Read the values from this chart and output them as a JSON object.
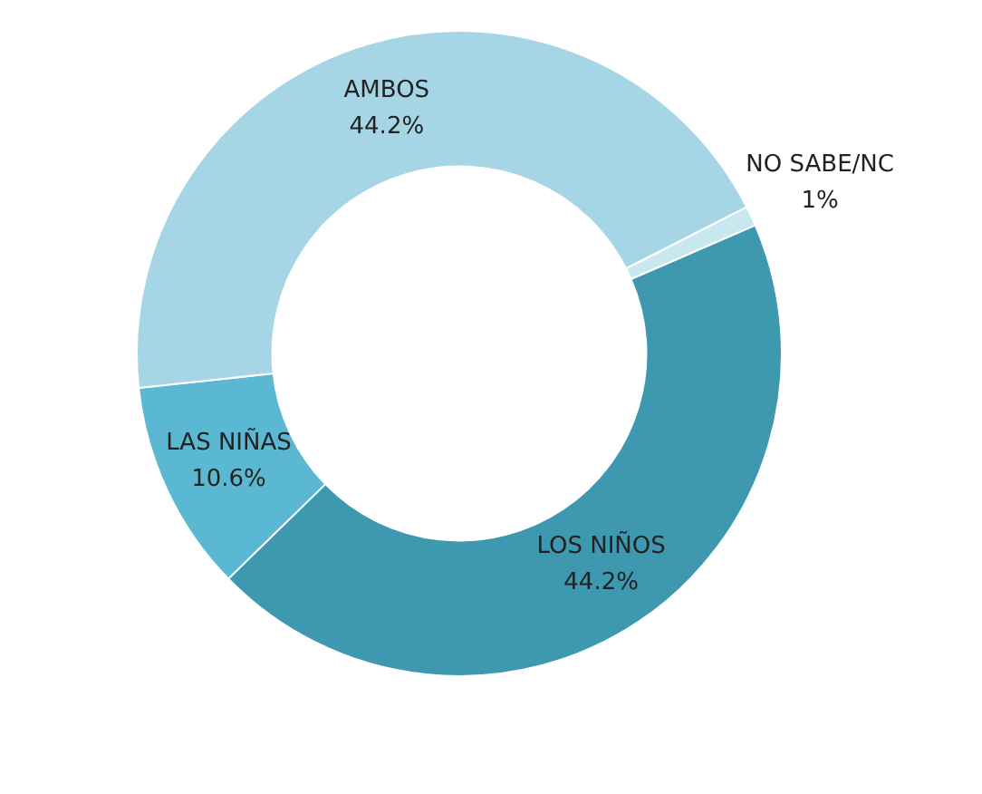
{
  "chart_data": {
    "type": "donut",
    "categories": [
      "NO SABE/NC",
      "LOS NIÑOS",
      "LAS NIÑAS",
      "AMBOS"
    ],
    "values": [
      1,
      44.2,
      10.6,
      44.2
    ],
    "value_labels": [
      "1%",
      "44.2%",
      "10.6%",
      "44.2%"
    ],
    "colors": [
      "#c8e8f0",
      "#3d98b0",
      "#5ab8d2",
      "#a6d6e6"
    ],
    "legend": false
  }
}
